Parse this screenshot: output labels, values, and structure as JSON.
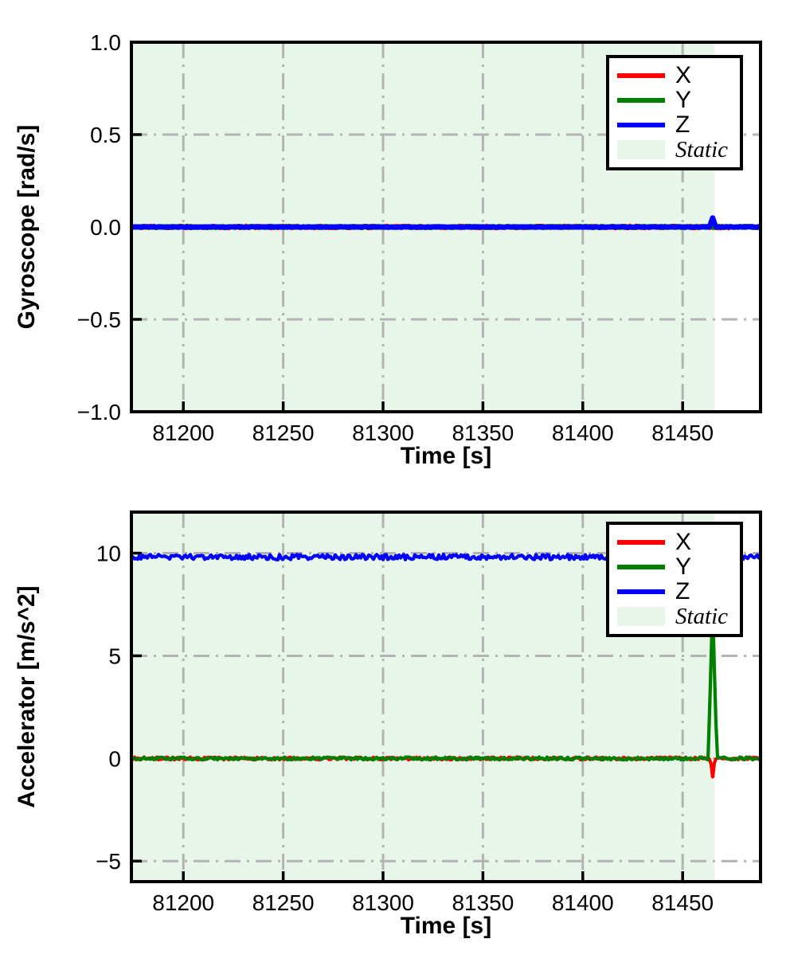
{
  "chart_data": [
    {
      "type": "line",
      "title": "",
      "xlabel": "Time [s]",
      "ylabel": "Gyroscope [rad/s]",
      "xlim": [
        81174,
        81489
      ],
      "ylim": [
        -1.0,
        1.0
      ],
      "xticks": [
        81200,
        81250,
        81300,
        81350,
        81400,
        81450
      ],
      "yticks": [
        1.0,
        0.5,
        0.0,
        -0.5,
        -1.0
      ],
      "ytick_labels": [
        "1.0",
        "0.5",
        "0.0",
        "−0.5",
        "−1.0"
      ],
      "grid": {
        "on": true,
        "line_style": "dash-dot",
        "color": "#b3b3b3"
      },
      "static_region": {
        "label": "Static",
        "x_start": 81174,
        "x_end": 81466,
        "fill": "#e8f5e9"
      },
      "series": [
        {
          "name": "X",
          "color": "#ff0000",
          "baseline": 0.0,
          "noise_amp": 0.004,
          "spikes": []
        },
        {
          "name": "Y",
          "color": "#008000",
          "baseline": 0.0,
          "noise_amp": 0.003,
          "spikes": []
        },
        {
          "name": "Z",
          "color": "#0000ff",
          "baseline": 0.0,
          "noise_amp": 0.002,
          "spikes": [
            {
              "time": 81465,
              "peak": 0.05,
              "half_width_s": 1.5
            }
          ]
        }
      ],
      "legend": {
        "position": "upper right",
        "entries": [
          {
            "label": "X",
            "swatch": "line",
            "color": "#ff0000",
            "italic": false
          },
          {
            "label": "Y",
            "swatch": "line",
            "color": "#008000",
            "italic": false
          },
          {
            "label": "Z",
            "swatch": "line",
            "color": "#0000ff",
            "italic": false
          },
          {
            "label": "Static",
            "swatch": "patch",
            "color": "#e8f5e9",
            "italic": true
          }
        ]
      }
    },
    {
      "type": "line",
      "title": "",
      "xlabel": "Time [s]",
      "ylabel": "Accelerator [m/s^2]",
      "xlim": [
        81174,
        81489
      ],
      "ylim": [
        -6,
        12
      ],
      "xticks": [
        81200,
        81250,
        81300,
        81350,
        81400,
        81450
      ],
      "yticks": [
        10,
        5,
        0,
        -5
      ],
      "ytick_labels": [
        "10",
        "5",
        "0",
        "−5"
      ],
      "grid": {
        "on": true,
        "line_style": "dash-dot",
        "color": "#b3b3b3"
      },
      "static_region": {
        "label": "Static",
        "x_start": 81174,
        "x_end": 81466,
        "fill": "#e8f5e9"
      },
      "series": [
        {
          "name": "X",
          "color": "#ff0000",
          "baseline": 0.0,
          "noise_amp": 0.07,
          "spikes": [
            {
              "time": 81465,
              "peak": -0.9,
              "half_width_s": 1.2
            }
          ]
        },
        {
          "name": "Y",
          "color": "#008000",
          "baseline": 0.0,
          "noise_amp": 0.07,
          "spikes": [
            {
              "time": 81465,
              "peak": 7.4,
              "half_width_s": 2.2
            }
          ]
        },
        {
          "name": "Z",
          "color": "#0000ff",
          "baseline": 9.81,
          "noise_amp": 0.13,
          "spikes": []
        }
      ],
      "legend": {
        "position": "upper right",
        "entries": [
          {
            "label": "X",
            "swatch": "line",
            "color": "#ff0000",
            "italic": false
          },
          {
            "label": "Y",
            "swatch": "line",
            "color": "#008000",
            "italic": false
          },
          {
            "label": "Z",
            "swatch": "line",
            "color": "#0000ff",
            "italic": false
          },
          {
            "label": "Static",
            "swatch": "patch",
            "color": "#e8f5e9",
            "italic": true
          }
        ]
      }
    }
  ]
}
